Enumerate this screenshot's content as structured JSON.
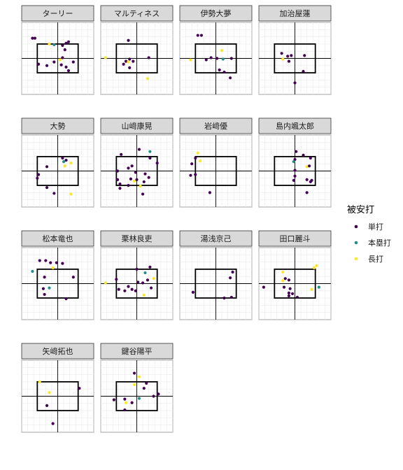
{
  "chart_data": {
    "type": "scatter",
    "facet_layout": {
      "cols": 4,
      "rows": 4
    },
    "xlim": [
      -1.5,
      1.5
    ],
    "ylim": [
      0,
      5
    ],
    "strike_zone": {
      "x": [
        -0.85,
        0.85
      ],
      "y": [
        1.5,
        3.5
      ]
    },
    "reference_lines": {
      "x": 0,
      "y": 2.5
    },
    "legend": {
      "title": "被安打",
      "entries": [
        {
          "label": "単打",
          "color": "#440154"
        },
        {
          "label": "本塁打",
          "color": "#21908C"
        },
        {
          "label": "長打",
          "color": "#FDE725"
        }
      ]
    },
    "panels": [
      {
        "title": "ターリー",
        "points": [
          {
            "x": -1.05,
            "y": 3.9,
            "type": "単打"
          },
          {
            "x": -0.95,
            "y": 3.9,
            "type": "単打"
          },
          {
            "x": -0.35,
            "y": 3.5,
            "type": "長打"
          },
          {
            "x": -0.15,
            "y": 3.45,
            "type": "本塁打"
          },
          {
            "x": 0.2,
            "y": 3.4,
            "type": "単打"
          },
          {
            "x": 0.35,
            "y": 3.55,
            "type": "単打"
          },
          {
            "x": 0.45,
            "y": 3.65,
            "type": "単打"
          },
          {
            "x": 0.3,
            "y": 3.1,
            "type": "単打"
          },
          {
            "x": 0.1,
            "y": 2.4,
            "type": "長打"
          },
          {
            "x": 0.2,
            "y": 2.55,
            "type": "単打"
          },
          {
            "x": -0.8,
            "y": 2.1,
            "type": "単打"
          },
          {
            "x": -0.45,
            "y": 2.0,
            "type": "単打"
          },
          {
            "x": 0.65,
            "y": 2.25,
            "type": "単打"
          },
          {
            "x": 0.35,
            "y": 1.9,
            "type": "単打"
          },
          {
            "x": 0.15,
            "y": 2.05,
            "type": "単打"
          },
          {
            "x": -0.15,
            "y": 2.25,
            "type": "単打"
          },
          {
            "x": 0.45,
            "y": 1.65,
            "type": "単打"
          }
        ]
      },
      {
        "title": "マルティネス",
        "points": [
          {
            "x": -0.35,
            "y": 3.75,
            "type": "単打"
          },
          {
            "x": 0.5,
            "y": 2.55,
            "type": "単打"
          },
          {
            "x": -0.3,
            "y": 2.45,
            "type": "単打"
          },
          {
            "x": -0.45,
            "y": 2.3,
            "type": "単打"
          },
          {
            "x": -0.55,
            "y": 2.1,
            "type": "単打"
          },
          {
            "x": -0.35,
            "y": 2.25,
            "type": "長打"
          },
          {
            "x": -0.15,
            "y": 2.3,
            "type": "単打"
          },
          {
            "x": -0.3,
            "y": 1.85,
            "type": "単打"
          },
          {
            "x": -1.3,
            "y": 2.55,
            "type": "長打"
          },
          {
            "x": 0.45,
            "y": 1.1,
            "type": "長打"
          }
        ]
      },
      {
        "title": "伊勢大夢",
        "points": [
          {
            "x": -0.75,
            "y": 4.1,
            "type": "単打"
          },
          {
            "x": -0.6,
            "y": 4.1,
            "type": "単打"
          },
          {
            "x": 0.25,
            "y": 3.05,
            "type": "長打"
          },
          {
            "x": 0.05,
            "y": 2.5,
            "type": "単打"
          },
          {
            "x": -0.4,
            "y": 2.4,
            "type": "単打"
          },
          {
            "x": -0.2,
            "y": 2.55,
            "type": "単打"
          },
          {
            "x": 0.3,
            "y": 2.45,
            "type": "本塁打"
          },
          {
            "x": 0.65,
            "y": 2.5,
            "type": "単打"
          },
          {
            "x": -1.05,
            "y": 2.4,
            "type": "長打"
          },
          {
            "x": 0.15,
            "y": 1.7,
            "type": "単打"
          },
          {
            "x": 0.35,
            "y": 1.55,
            "type": "単打"
          },
          {
            "x": 0.6,
            "y": 1.15,
            "type": "単打"
          }
        ]
      },
      {
        "title": "加治屋蓮",
        "points": [
          {
            "x": -0.55,
            "y": 2.85,
            "type": "単打"
          },
          {
            "x": -0.3,
            "y": 2.65,
            "type": "単打"
          },
          {
            "x": -0.15,
            "y": 2.7,
            "type": "単打"
          },
          {
            "x": -0.5,
            "y": 2.45,
            "type": "長打"
          },
          {
            "x": -0.25,
            "y": 2.3,
            "type": "単打"
          },
          {
            "x": 0.4,
            "y": 2.7,
            "type": "単打"
          },
          {
            "x": 0.35,
            "y": 1.6,
            "type": "単打"
          },
          {
            "x": 0.0,
            "y": 0.8,
            "type": "単打"
          }
        ]
      },
      {
        "title": "大勢",
        "points": [
          {
            "x": 0.2,
            "y": 3.4,
            "type": "単打"
          },
          {
            "x": 0.35,
            "y": 3.25,
            "type": "単打"
          },
          {
            "x": 0.25,
            "y": 3.15,
            "type": "本塁打"
          },
          {
            "x": 0.55,
            "y": 3.05,
            "type": "長打"
          },
          {
            "x": 0.3,
            "y": 2.85,
            "type": "長打"
          },
          {
            "x": -0.45,
            "y": 2.8,
            "type": "単打"
          },
          {
            "x": -0.8,
            "y": 2.25,
            "type": "単打"
          },
          {
            "x": -0.85,
            "y": 2.0,
            "type": "単打"
          },
          {
            "x": -0.45,
            "y": 1.35,
            "type": "単打"
          },
          {
            "x": -0.15,
            "y": 0.95,
            "type": "単打"
          },
          {
            "x": 0.55,
            "y": 0.9,
            "type": "長打"
          }
        ]
      },
      {
        "title": "山﨑康晃",
        "points": [
          {
            "x": 0.1,
            "y": 4.0,
            "type": "単打"
          },
          {
            "x": 0.55,
            "y": 3.85,
            "type": "本塁打"
          },
          {
            "x": -0.65,
            "y": 3.65,
            "type": "単打"
          },
          {
            "x": 0.55,
            "y": 3.4,
            "type": "単打"
          },
          {
            "x": 0.85,
            "y": 3.05,
            "type": "単打"
          },
          {
            "x": -0.2,
            "y": 2.85,
            "type": "単打"
          },
          {
            "x": -0.35,
            "y": 2.7,
            "type": "単打"
          },
          {
            "x": -0.8,
            "y": 2.5,
            "type": "単打"
          },
          {
            "x": -0.05,
            "y": 2.4,
            "type": "単打"
          },
          {
            "x": 0.35,
            "y": 2.3,
            "type": "単打"
          },
          {
            "x": 0.5,
            "y": 2.05,
            "type": "単打"
          },
          {
            "x": -0.8,
            "y": 1.9,
            "type": "単打"
          },
          {
            "x": -0.25,
            "y": 1.95,
            "type": "単打"
          },
          {
            "x": -0.1,
            "y": 1.8,
            "type": "長打"
          },
          {
            "x": 0.0,
            "y": 1.9,
            "type": "単打"
          },
          {
            "x": 0.3,
            "y": 1.75,
            "type": "単打"
          },
          {
            "x": -0.7,
            "y": 1.6,
            "type": "単打"
          },
          {
            "x": -0.35,
            "y": 1.5,
            "type": "単打"
          },
          {
            "x": 0.15,
            "y": 1.45,
            "type": "長打"
          },
          {
            "x": -0.7,
            "y": 1.3,
            "type": "単打"
          },
          {
            "x": 0.25,
            "y": 0.9,
            "type": "単打"
          }
        ]
      },
      {
        "title": "岩﨑優",
        "points": [
          {
            "x": -0.75,
            "y": 3.75,
            "type": "長打"
          },
          {
            "x": -0.85,
            "y": 3.4,
            "type": "単打"
          },
          {
            "x": -0.65,
            "y": 3.2,
            "type": "長打"
          },
          {
            "x": -1.0,
            "y": 3.0,
            "type": "単打"
          },
          {
            "x": -1.05,
            "y": 2.2,
            "type": "単打"
          },
          {
            "x": -0.85,
            "y": 2.25,
            "type": "単打"
          },
          {
            "x": -0.25,
            "y": 1.0,
            "type": "単打"
          }
        ]
      },
      {
        "title": "島内颯太郎",
        "points": [
          {
            "x": 0.05,
            "y": 3.85,
            "type": "単打"
          },
          {
            "x": 0.35,
            "y": 3.6,
            "type": "単打"
          },
          {
            "x": 0.65,
            "y": 3.4,
            "type": "単打"
          },
          {
            "x": 0.0,
            "y": 3.3,
            "type": "単打"
          },
          {
            "x": -0.05,
            "y": 3.15,
            "type": "本塁打"
          },
          {
            "x": 0.5,
            "y": 2.8,
            "type": "長打"
          },
          {
            "x": 0.6,
            "y": 2.85,
            "type": "単打"
          },
          {
            "x": 0.0,
            "y": 2.55,
            "type": "単打"
          },
          {
            "x": 0.0,
            "y": 2.15,
            "type": "単打"
          },
          {
            "x": -0.05,
            "y": 1.85,
            "type": "単打"
          },
          {
            "x": 0.5,
            "y": 1.9,
            "type": "単打"
          },
          {
            "x": 0.65,
            "y": 1.75,
            "type": "単打"
          },
          {
            "x": 0.7,
            "y": 1.85,
            "type": "単打"
          },
          {
            "x": 0.5,
            "y": 1.0,
            "type": "単打"
          }
        ]
      },
      {
        "title": "松本竜也",
        "points": [
          {
            "x": -0.75,
            "y": 4.1,
            "type": "単打"
          },
          {
            "x": -0.5,
            "y": 4.1,
            "type": "単打"
          },
          {
            "x": -0.3,
            "y": 3.95,
            "type": "単打"
          },
          {
            "x": -0.05,
            "y": 3.95,
            "type": "単打"
          },
          {
            "x": 0.2,
            "y": 3.9,
            "type": "単打"
          },
          {
            "x": -0.2,
            "y": 3.6,
            "type": "長打"
          },
          {
            "x": -1.05,
            "y": 3.35,
            "type": "本塁打"
          },
          {
            "x": -0.55,
            "y": 2.95,
            "type": "単打"
          },
          {
            "x": 0.65,
            "y": 2.95,
            "type": "単打"
          },
          {
            "x": -0.6,
            "y": 2.15,
            "type": "単打"
          },
          {
            "x": -0.35,
            "y": 2.2,
            "type": "本塁打"
          },
          {
            "x": -0.55,
            "y": 1.75,
            "type": "単打"
          },
          {
            "x": 0.35,
            "y": 1.45,
            "type": "単打"
          }
        ]
      },
      {
        "title": "栗林良吏",
        "points": [
          {
            "x": 0.0,
            "y": 3.5,
            "type": "単打"
          },
          {
            "x": 0.55,
            "y": 3.65,
            "type": "単打"
          },
          {
            "x": 0.35,
            "y": 3.25,
            "type": "本塁打"
          },
          {
            "x": -0.85,
            "y": 2.8,
            "type": "単打"
          },
          {
            "x": 0.45,
            "y": 2.75,
            "type": "単打"
          },
          {
            "x": 0.7,
            "y": 2.85,
            "type": "長打"
          },
          {
            "x": 0.05,
            "y": 2.6,
            "type": "単打"
          },
          {
            "x": 0.25,
            "y": 2.55,
            "type": "単打"
          },
          {
            "x": -0.35,
            "y": 2.3,
            "type": "単打"
          },
          {
            "x": -0.75,
            "y": 2.1,
            "type": "単打"
          },
          {
            "x": -0.2,
            "y": 2.1,
            "type": "単打"
          },
          {
            "x": -0.05,
            "y": 2.0,
            "type": "単打"
          },
          {
            "x": 0.6,
            "y": 2.2,
            "type": "単打"
          },
          {
            "x": -0.5,
            "y": 2.0,
            "type": "単打"
          },
          {
            "x": -1.3,
            "y": 2.55,
            "type": "長打"
          },
          {
            "x": 0.3,
            "y": 1.7,
            "type": "長打"
          }
        ]
      },
      {
        "title": "湯浅京己",
        "points": [
          {
            "x": 0.7,
            "y": 3.3,
            "type": "単打"
          },
          {
            "x": 0.6,
            "y": 2.9,
            "type": "単打"
          },
          {
            "x": -0.95,
            "y": 1.9,
            "type": "単打"
          },
          {
            "x": 0.35,
            "y": 1.5,
            "type": "単打"
          },
          {
            "x": 0.65,
            "y": 1.55,
            "type": "単打"
          }
        ]
      },
      {
        "title": "田口麗斗",
        "points": [
          {
            "x": 0.9,
            "y": 3.75,
            "type": "長打"
          },
          {
            "x": 0.8,
            "y": 3.6,
            "type": "長打"
          },
          {
            "x": -0.5,
            "y": 3.3,
            "type": "長打"
          },
          {
            "x": -0.4,
            "y": 2.85,
            "type": "単打"
          },
          {
            "x": -0.25,
            "y": 2.75,
            "type": "単打"
          },
          {
            "x": -0.5,
            "y": 2.7,
            "type": "長打"
          },
          {
            "x": -1.3,
            "y": 2.25,
            "type": "単打"
          },
          {
            "x": -0.45,
            "y": 2.25,
            "type": "単打"
          },
          {
            "x": -0.2,
            "y": 2.15,
            "type": "単打"
          },
          {
            "x": 0.7,
            "y": 2.1,
            "type": "長打"
          },
          {
            "x": 1.0,
            "y": 2.25,
            "type": "本塁打"
          },
          {
            "x": -0.25,
            "y": 1.85,
            "type": "単打"
          },
          {
            "x": -0.1,
            "y": 1.8,
            "type": "単打"
          },
          {
            "x": -0.25,
            "y": 1.65,
            "type": "単打"
          },
          {
            "x": 0.1,
            "y": 1.55,
            "type": "単打"
          }
        ]
      },
      {
        "title": "矢﨑拓也",
        "points": [
          {
            "x": -0.75,
            "y": 3.5,
            "type": "長打"
          },
          {
            "x": 0.9,
            "y": 3.05,
            "type": "単打"
          },
          {
            "x": -0.35,
            "y": 2.75,
            "type": "長打"
          },
          {
            "x": -0.45,
            "y": 1.85,
            "type": "単打"
          },
          {
            "x": -0.2,
            "y": 0.6,
            "type": "単打"
          }
        ]
      },
      {
        "title": "鍵谷陽平",
        "points": [
          {
            "x": -0.1,
            "y": 4.1,
            "type": "単打"
          },
          {
            "x": 0.1,
            "y": 3.85,
            "type": "長打"
          },
          {
            "x": 0.4,
            "y": 3.4,
            "type": "単打"
          },
          {
            "x": -0.1,
            "y": 3.3,
            "type": "長打"
          },
          {
            "x": 0.3,
            "y": 3.05,
            "type": "単打"
          },
          {
            "x": 0.9,
            "y": 2.65,
            "type": "単打"
          },
          {
            "x": 0.7,
            "y": 2.5,
            "type": "単打"
          },
          {
            "x": -0.5,
            "y": 2.3,
            "type": "単打"
          },
          {
            "x": 0.1,
            "y": 2.35,
            "type": "本塁打"
          },
          {
            "x": -0.2,
            "y": 2.05,
            "type": "単打"
          },
          {
            "x": -0.45,
            "y": 2.05,
            "type": "長打"
          },
          {
            "x": -0.95,
            "y": 2.25,
            "type": "単打"
          },
          {
            "x": -0.5,
            "y": 1.55,
            "type": "単打"
          }
        ]
      }
    ]
  }
}
